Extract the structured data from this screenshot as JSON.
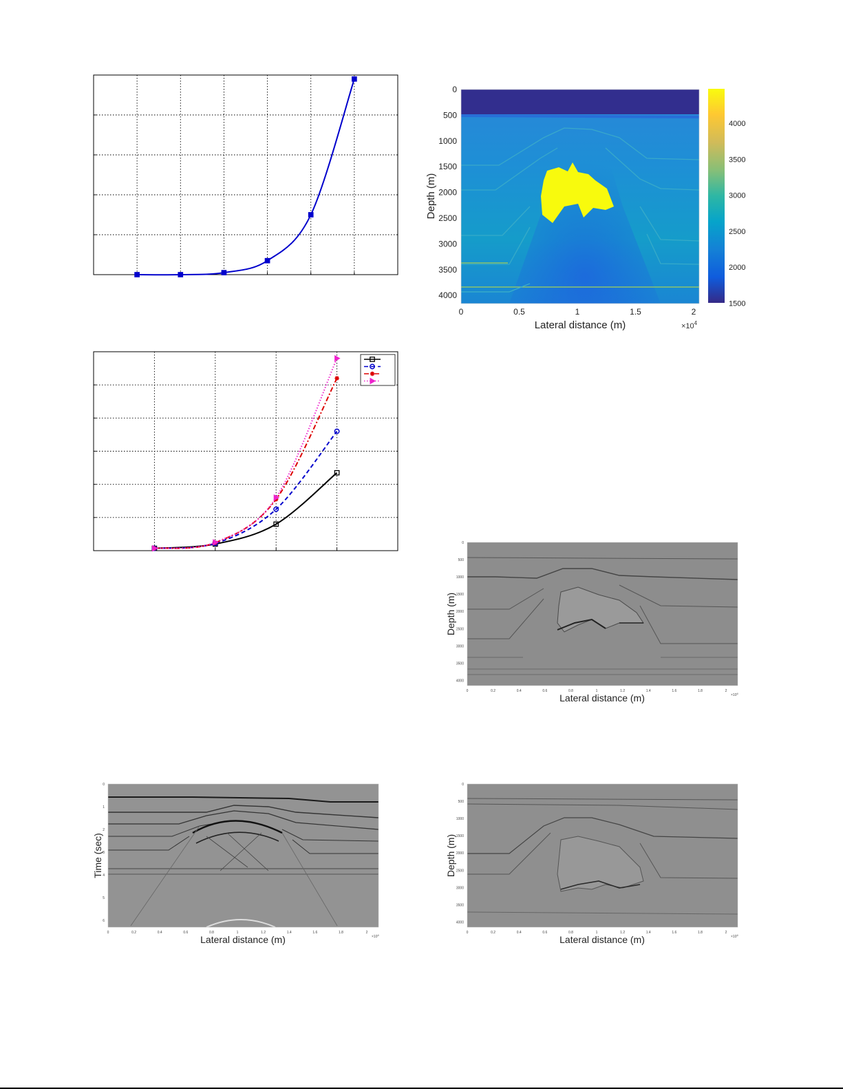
{
  "chart_data": [
    {
      "id": "chart-a",
      "type": "line",
      "title": "",
      "xlabel": "",
      "ylabel": "",
      "x_ticks": [
        0,
        1,
        2,
        3,
        4,
        5,
        6,
        7
      ],
      "y_ticks": [
        0,
        1,
        2,
        3,
        4,
        5
      ],
      "xlim": [
        0,
        7
      ],
      "ylim": [
        0,
        5
      ],
      "grid": true,
      "tick_labels_visible": false,
      "series": [
        {
          "color": "#0000cc",
          "marker": "square",
          "dash": "solid",
          "x": [
            1,
            2,
            3,
            4,
            5,
            6
          ],
          "y": [
            0.0,
            0.0,
            0.05,
            0.35,
            1.5,
            4.9
          ]
        }
      ]
    },
    {
      "id": "chart-b",
      "type": "line",
      "title": "",
      "xlabel": "",
      "ylabel": "",
      "x_ticks": [
        0,
        1,
        2,
        3,
        4,
        5
      ],
      "y_ticks": [
        0,
        1,
        2,
        3,
        4,
        5,
        6
      ],
      "xlim": [
        0,
        5
      ],
      "ylim": [
        0,
        6
      ],
      "grid": true,
      "tick_labels_visible": false,
      "legend": "top-right",
      "series": [
        {
          "color": "#000000",
          "marker": "square",
          "dash": "solid",
          "x": [
            1,
            2,
            3,
            4
          ],
          "y": [
            0.07,
            0.2,
            0.8,
            2.35
          ]
        },
        {
          "color": "#0000cc",
          "marker": "circle",
          "dash": "dashed",
          "x": [
            1,
            2,
            3,
            4
          ],
          "y": [
            0.07,
            0.22,
            1.25,
            3.6
          ]
        },
        {
          "color": "#dd0000",
          "marker": "star",
          "dash": "dashdot",
          "x": [
            1,
            2,
            3,
            4
          ],
          "y": [
            0.07,
            0.24,
            1.55,
            5.2
          ]
        },
        {
          "color": "#ee22cc",
          "marker": "triangle-right",
          "dash": "dotted",
          "x": [
            1,
            2,
            3,
            4
          ],
          "y": [
            0.07,
            0.25,
            1.6,
            5.8
          ]
        }
      ]
    },
    {
      "id": "chart-velocity",
      "type": "heatmap",
      "xlabel": "Lateral distance (m)",
      "ylabel": "Depth (m)",
      "x_ticks": [
        "0",
        "0.5",
        "1",
        "1.5",
        "2"
      ],
      "x_multiplier": "×10",
      "x_multiplier_exp": "4",
      "y_ticks": [
        "0",
        "500",
        "1000",
        "1500",
        "2000",
        "2500",
        "3000",
        "3500",
        "4000"
      ],
      "colorbar_ticks": [
        "4000",
        "3500",
        "3000",
        "2500",
        "2000",
        "1500"
      ],
      "xlim": [
        0,
        20500
      ],
      "ylim": [
        0,
        4200
      ],
      "clim": [
        1480,
        4500
      ],
      "colormap": [
        "#352a87",
        "#0f5cdd",
        "#1481d6",
        "#06a4ca",
        "#2eb7a4",
        "#87bf77",
        "#d1bb59",
        "#fec832",
        "#f9fb0e"
      ]
    },
    {
      "id": "chart-image-1",
      "type": "heatmap",
      "xlabel": "Lateral distance (m)",
      "ylabel": "Depth (m)",
      "x_ticks": [
        "0",
        "0.2",
        "0.4",
        "0.6",
        "0.8",
        "1",
        "1.2",
        "1.4",
        "1.6",
        "1.8",
        "2"
      ],
      "x_multiplier": "×10",
      "x_multiplier_exp": "4",
      "y_ticks": [
        "0",
        "500",
        "1000",
        "1500",
        "2000",
        "2500",
        "3000",
        "3500",
        "4000"
      ],
      "colormap": "gray"
    },
    {
      "id": "chart-seismic",
      "type": "heatmap",
      "xlabel": "Lateral distance (m)",
      "ylabel": "Time (sec)",
      "x_ticks": [
        "0",
        "0.2",
        "0.4",
        "0.6",
        "0.8",
        "1",
        "1.2",
        "1.4",
        "1.6",
        "1.8",
        "2"
      ],
      "x_multiplier": "×10",
      "x_multiplier_exp": "4",
      "y_ticks": [
        "0",
        "1",
        "2",
        "3",
        "4",
        "5",
        "6"
      ],
      "colormap": "gray"
    },
    {
      "id": "chart-image-2",
      "type": "heatmap",
      "xlabel": "Lateral distance (m)",
      "ylabel": "Depth (m)",
      "x_ticks": [
        "0",
        "0.2",
        "0.4",
        "0.6",
        "0.8",
        "1",
        "1.2",
        "1.4",
        "1.6",
        "1.8",
        "2"
      ],
      "x_multiplier": "×10",
      "x_multiplier_exp": "4",
      "y_ticks": [
        "0",
        "500",
        "1000",
        "1500",
        "2000",
        "2500",
        "3000",
        "3500",
        "4000"
      ],
      "colormap": "gray"
    }
  ]
}
